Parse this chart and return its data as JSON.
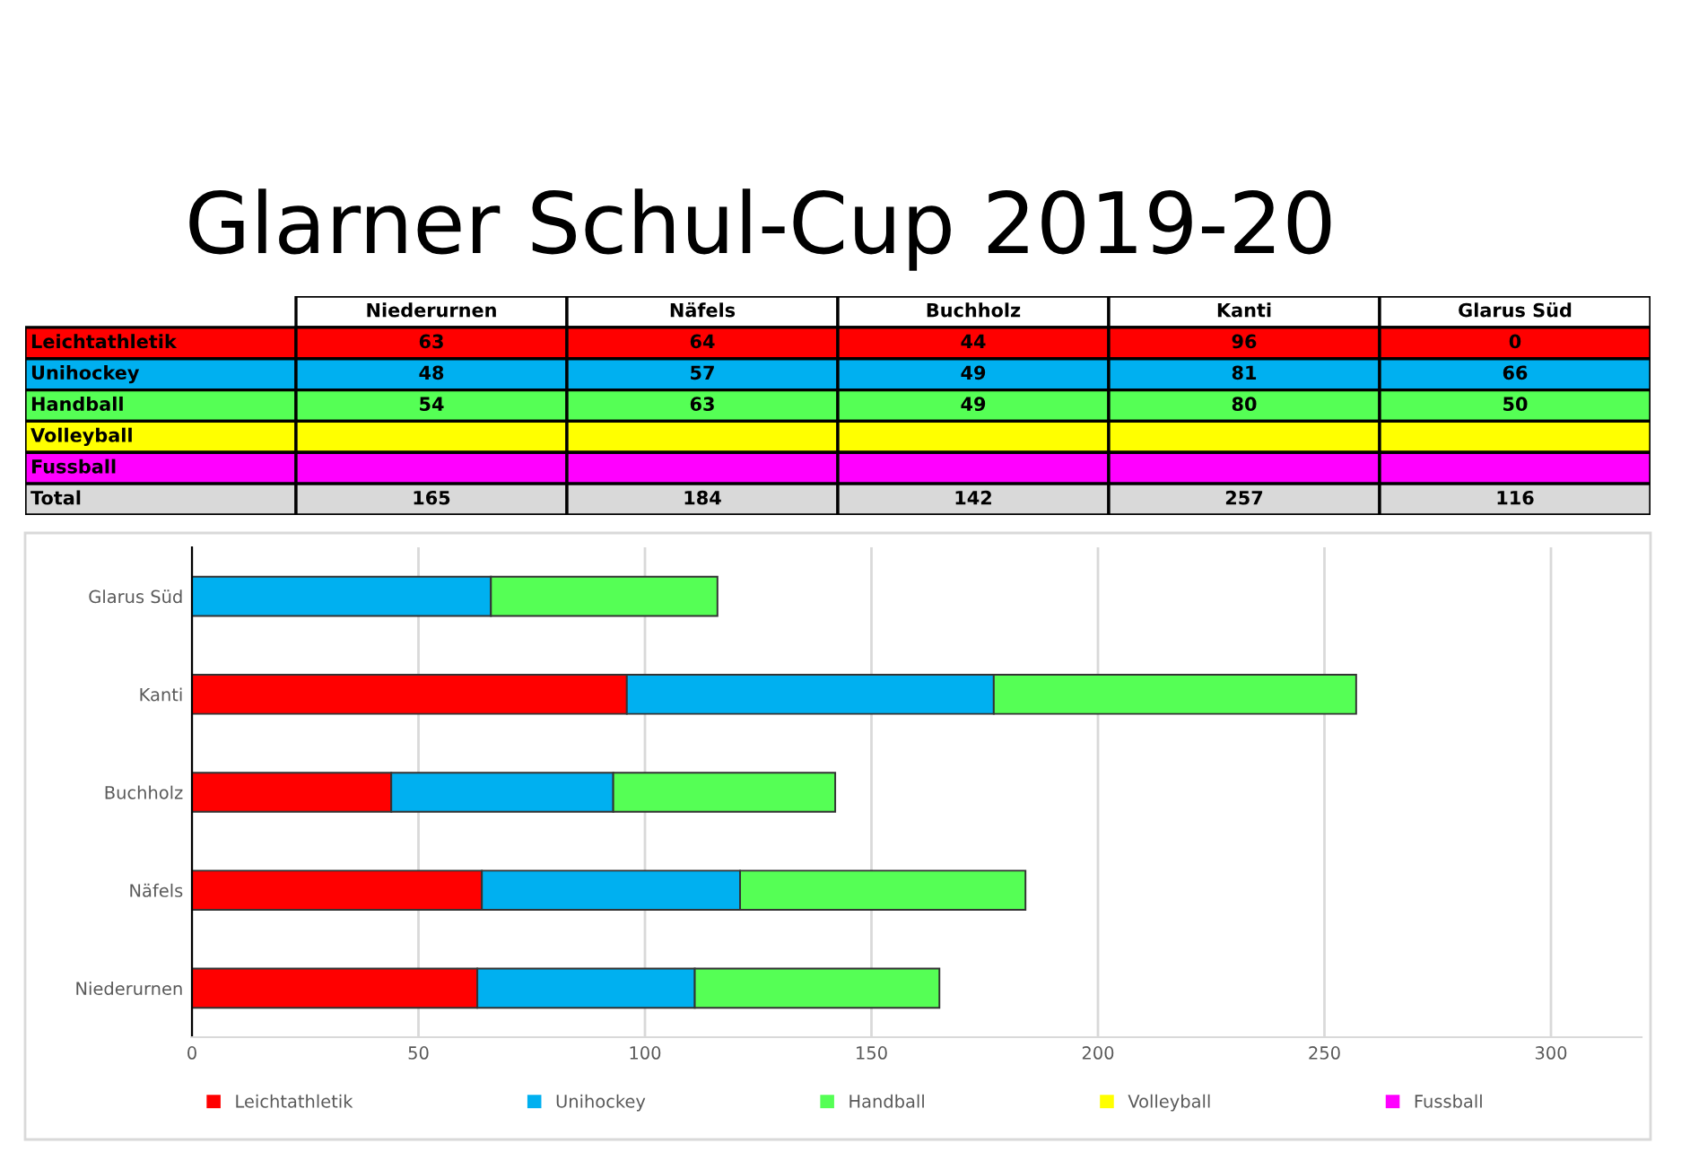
{
  "chart_data": [
    {
      "type": "other",
      "title": "Glarner Schul-Cup 2019-20",
      "categories": [
        "Niederurnen",
        "Näfels",
        "Buchholz",
        "Kanti",
        "Glarus Süd"
      ],
      "series": [
        {
          "name": "Leichtathletik",
          "values": [
            63,
            64,
            44,
            96,
            0
          ]
        },
        {
          "name": "Unihockey",
          "values": [
            48,
            57,
            49,
            81,
            66
          ]
        },
        {
          "name": "Handball",
          "values": [
            54,
            63,
            49,
            80,
            50
          ]
        },
        {
          "name": "Volleyball",
          "values": [
            null,
            null,
            null,
            null,
            null
          ]
        },
        {
          "name": "Fussball",
          "values": [
            null,
            null,
            null,
            null,
            null
          ]
        }
      ],
      "annotations": [
        "Total"
      ],
      "totals": [
        "165",
        "184",
        "142",
        "257",
        "116"
      ],
      "data_labels": true
    },
    {
      "type": "bar",
      "orientation": "horizontal",
      "stacked": true,
      "categories": [
        "Glarus Süd",
        "Kanti",
        "Buchholz",
        "Näfels",
        "Niederurnen"
      ],
      "series": [
        {
          "name": "Leichtathletik",
          "color": "#ff0000",
          "values": [
            0,
            96,
            44,
            64,
            63
          ]
        },
        {
          "name": "Unihockey",
          "color": "#00b0f0",
          "values": [
            66,
            81,
            49,
            57,
            48
          ]
        },
        {
          "name": "Handball",
          "color": "#55ff55",
          "values": [
            50,
            80,
            49,
            63,
            54
          ]
        },
        {
          "name": "Volleyball",
          "color": "#ffff00",
          "values": [
            null,
            null,
            null,
            null,
            null
          ]
        },
        {
          "name": "Fussball",
          "color": "#ff00ff",
          "values": [
            null,
            null,
            null,
            null,
            null
          ]
        }
      ],
      "xlim": [
        0,
        320
      ],
      "xticks": [
        0,
        50,
        100,
        150,
        200,
        250,
        300
      ],
      "grid": "x",
      "legend": "bottom"
    }
  ]
}
